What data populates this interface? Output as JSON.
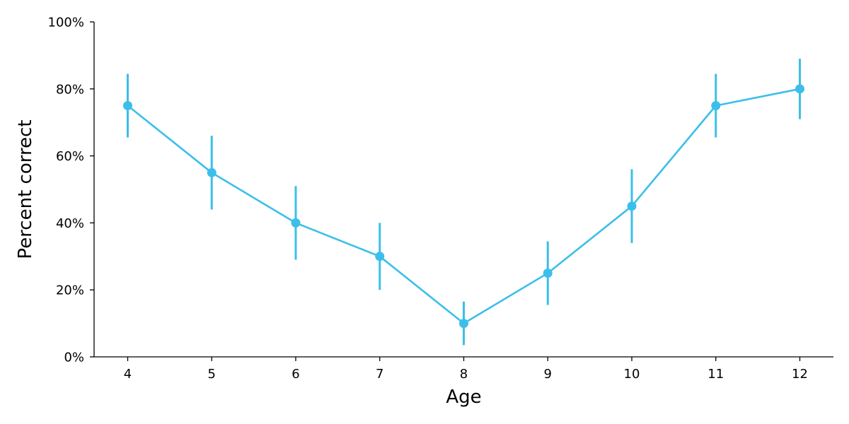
{
  "chart_data": {
    "type": "line",
    "title": "",
    "xlabel": "Age",
    "ylabel": "Percent correct",
    "x": [
      4,
      5,
      6,
      7,
      8,
      9,
      10,
      11,
      12
    ],
    "x_tick_labels": [
      "4",
      "5",
      "6",
      "7",
      "8",
      "9",
      "10",
      "11",
      "12"
    ],
    "xlim": [
      3.6,
      12.4
    ],
    "ylim": [
      0,
      100
    ],
    "y_ticks": [
      0,
      20,
      40,
      60,
      80,
      100
    ],
    "y_tick_labels": [
      "0%",
      "20%",
      "40%",
      "60%",
      "80%",
      "100%"
    ],
    "grid": false,
    "legend": "none",
    "series": [
      {
        "color": "#3bbfea",
        "values": [
          75,
          55,
          40,
          30,
          10,
          25,
          45,
          75,
          80
        ],
        "error_low": [
          65.5,
          44,
          29,
          20,
          3.5,
          15.5,
          34,
          65.5,
          71
        ],
        "error_high": [
          84.5,
          66,
          51,
          40,
          16.5,
          34.5,
          56,
          84.5,
          89
        ]
      }
    ]
  }
}
